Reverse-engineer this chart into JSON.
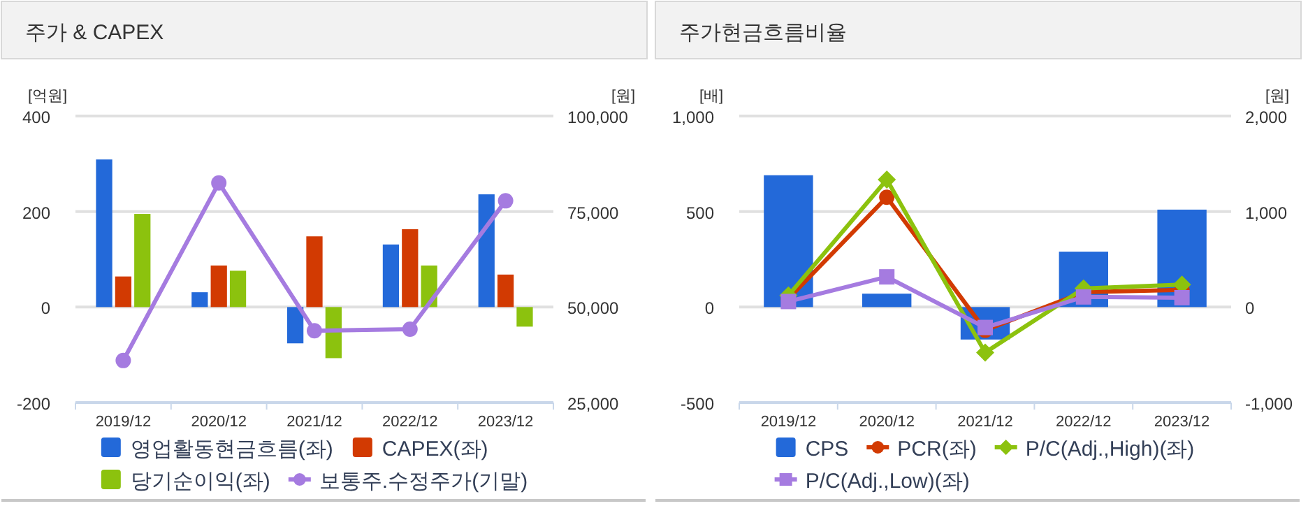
{
  "chart_data": [
    {
      "type": "bar",
      "title": "주가 & CAPEX",
      "ylabel": "[억원]",
      "y2label": "[원]",
      "categories": [
        "2019/12",
        "2020/12",
        "2021/12",
        "2022/12",
        "2023/12"
      ],
      "ylim": [
        -200,
        400
      ],
      "yticks": [
        -200,
        0,
        200,
        400
      ],
      "y2lim": [
        25000,
        100000
      ],
      "y2ticks": [
        {
          "value": 25000,
          "label": "25,000"
        },
        {
          "value": 50000,
          "label": "50,000"
        },
        {
          "value": 75000,
          "label": "75,000"
        },
        {
          "value": 100000,
          "label": "100,000"
        }
      ],
      "grid": "y",
      "legend": "bottom",
      "series": [
        {
          "name": "영업활동현금흐름(좌)",
          "color": "#2369d9",
          "values": [
            309,
            31,
            -76,
            131,
            236
          ]
        },
        {
          "name": "CAPEX(좌)",
          "color": "#d23a02",
          "values": [
            64,
            87,
            148,
            163,
            68
          ]
        },
        {
          "name": "당기순이익(좌)",
          "color": "#8cc20e",
          "values": [
            195,
            76,
            -107,
            87,
            -41
          ]
        },
        {
          "name": "보통주.수정주가(기말)",
          "type": "line",
          "axis": "y2",
          "marker": "circle",
          "color": "#a57be0",
          "values": [
            36000,
            82500,
            43800,
            44200,
            77800
          ]
        }
      ]
    },
    {
      "type": "bar",
      "title": "주가현금흐름비율",
      "ylabel": "[배]",
      "y2label": "[원]",
      "categories": [
        "2019/12",
        "2020/12",
        "2021/12",
        "2022/12",
        "2023/12"
      ],
      "ylim": [
        -500,
        1000
      ],
      "yticks": [
        -500,
        0,
        500,
        {
          "value": 1000,
          "label": "1,000"
        }
      ],
      "y2lim": [
        -1000,
        2000
      ],
      "y2ticks": [
        {
          "value": -1000,
          "label": "-1,000"
        },
        0,
        {
          "value": 1000,
          "label": "1,000"
        },
        {
          "value": 2000,
          "label": "2,000"
        }
      ],
      "grid": "y",
      "legend": "bottom",
      "series": [
        {
          "name": "CPS",
          "axis": "y2",
          "color": "#2369d9",
          "values": [
            1380,
            140,
            -340,
            580,
            1020
          ]
        },
        {
          "name": "PCR(좌)",
          "type": "line",
          "marker": "circle",
          "color": "#d23a02",
          "values": [
            44,
            575,
            -121,
            78,
            90
          ]
        },
        {
          "name": "P/C(Adj.,High)(좌)",
          "type": "line",
          "marker": "diamond",
          "color": "#8cc20e",
          "values": [
            61,
            667,
            -238,
            97,
            117
          ]
        },
        {
          "name": "P/C(Adj.,Low)(좌)",
          "type": "line",
          "marker": "square",
          "color": "#a57be0",
          "values": [
            29,
            158,
            -107,
            53,
            49
          ]
        }
      ]
    }
  ]
}
